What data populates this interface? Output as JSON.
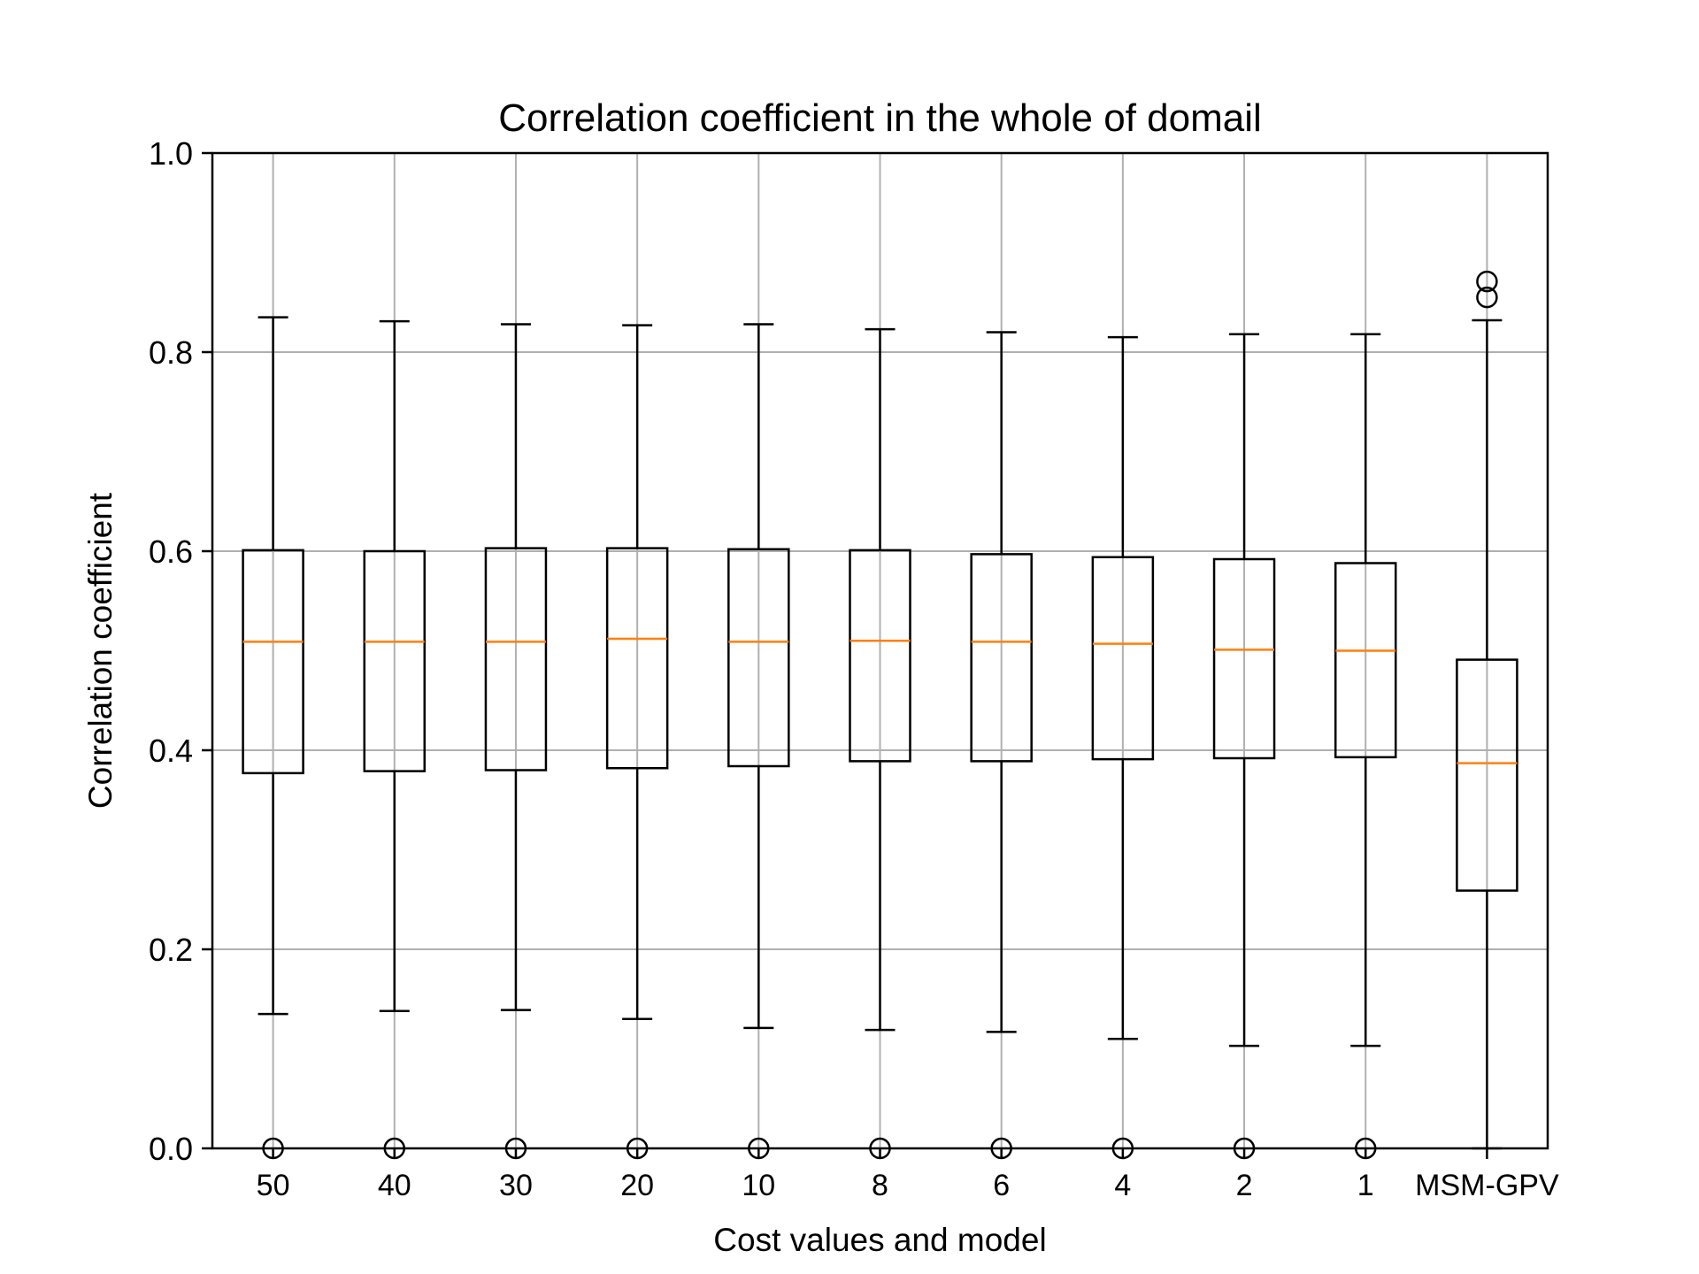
{
  "chart_data": {
    "type": "box",
    "title": "Correlation coefficient in the whole of domail",
    "xlabel": "Cost values and model",
    "ylabel": "Correlation coefficient",
    "ylim": [
      0.0,
      1.0
    ],
    "yticks": [
      "0.0",
      "0.2",
      "0.4",
      "0.6",
      "0.8",
      "1.0"
    ],
    "grid": true,
    "categories": [
      "50",
      "40",
      "30",
      "20",
      "10",
      "8",
      "6",
      "4",
      "2",
      "1",
      "MSM-GPV"
    ],
    "boxes": [
      {
        "whisker_low": 0.135,
        "q1": 0.377,
        "median": 0.509,
        "q3": 0.601,
        "whisker_high": 0.835,
        "outliers": [
          0.0
        ]
      },
      {
        "whisker_low": 0.138,
        "q1": 0.379,
        "median": 0.509,
        "q3": 0.6,
        "whisker_high": 0.831,
        "outliers": [
          0.0
        ]
      },
      {
        "whisker_low": 0.139,
        "q1": 0.38,
        "median": 0.509,
        "q3": 0.603,
        "whisker_high": 0.828,
        "outliers": [
          0.0
        ]
      },
      {
        "whisker_low": 0.13,
        "q1": 0.382,
        "median": 0.512,
        "q3": 0.603,
        "whisker_high": 0.827,
        "outliers": [
          0.0
        ]
      },
      {
        "whisker_low": 0.121,
        "q1": 0.384,
        "median": 0.509,
        "q3": 0.602,
        "whisker_high": 0.828,
        "outliers": [
          0.0
        ]
      },
      {
        "whisker_low": 0.119,
        "q1": 0.389,
        "median": 0.51,
        "q3": 0.601,
        "whisker_high": 0.823,
        "outliers": [
          0.0
        ]
      },
      {
        "whisker_low": 0.117,
        "q1": 0.389,
        "median": 0.509,
        "q3": 0.597,
        "whisker_high": 0.82,
        "outliers": [
          0.0
        ]
      },
      {
        "whisker_low": 0.11,
        "q1": 0.391,
        "median": 0.507,
        "q3": 0.594,
        "whisker_high": 0.815,
        "outliers": [
          0.0
        ]
      },
      {
        "whisker_low": 0.103,
        "q1": 0.392,
        "median": 0.501,
        "q3": 0.592,
        "whisker_high": 0.818,
        "outliers": [
          0.0
        ]
      },
      {
        "whisker_low": 0.103,
        "q1": 0.393,
        "median": 0.5,
        "q3": 0.588,
        "whisker_high": 0.818,
        "outliers": [
          0.0
        ]
      },
      {
        "whisker_low": 0.0,
        "q1": 0.259,
        "median": 0.387,
        "q3": 0.491,
        "whisker_high": 0.832,
        "outliers": [
          0.855,
          0.871
        ]
      }
    ],
    "colors": {
      "box": "#000000",
      "median": "#ff7f0e",
      "grid": "#b0b0b0",
      "axes": "#000000"
    }
  }
}
